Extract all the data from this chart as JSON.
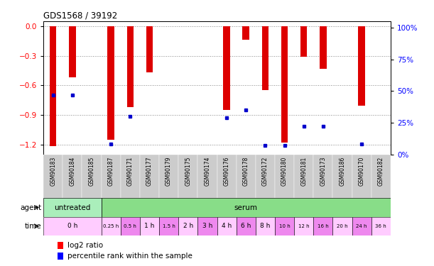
{
  "title": "GDS1568 / 39192",
  "samples": [
    "GSM90183",
    "GSM90184",
    "GSM90185",
    "GSM90187",
    "GSM90171",
    "GSM90177",
    "GSM90179",
    "GSM90175",
    "GSM90174",
    "GSM90176",
    "GSM90178",
    "GSM90172",
    "GSM90180",
    "GSM90181",
    "GSM90173",
    "GSM90186",
    "GSM90170",
    "GSM90182"
  ],
  "log2_ratio": [
    -1.22,
    -0.52,
    0.0,
    -1.15,
    -0.82,
    -0.47,
    0.0,
    0.0,
    0.0,
    -0.85,
    -0.14,
    -0.65,
    -1.18,
    -0.31,
    -0.43,
    0.0,
    -0.81,
    0.0
  ],
  "percentile_rank": [
    47,
    47,
    0,
    8,
    30,
    0,
    0,
    0,
    0,
    29,
    35,
    7,
    7,
    22,
    22,
    0,
    8,
    0
  ],
  "ylim_left": [
    -1.3,
    0.05
  ],
  "ylim_right": [
    0,
    105
  ],
  "yticks_left": [
    0,
    -0.3,
    -0.6,
    -0.9,
    -1.2
  ],
  "yticks_right": [
    0,
    25,
    50,
    75,
    100
  ],
  "bar_color": "#dd0000",
  "pct_color": "#0000cc",
  "agent_untreated_color": "#aaeebb",
  "agent_serum_color": "#88dd88",
  "time_color_light": "#ffccff",
  "time_color_dark": "#ee88ee",
  "agent_label": "agent",
  "time_label": "time",
  "untreated_label": "untreated",
  "serum_label": "serum",
  "legend_red": "log2 ratio",
  "legend_blue": "percentile rank within the sample",
  "grid_color": "#888888",
  "sample_label_color": "#333333",
  "bar_width": 0.35
}
